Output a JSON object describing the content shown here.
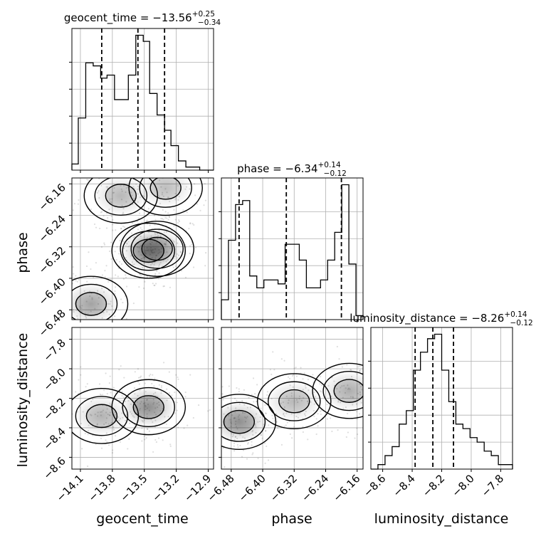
{
  "chart_data": {
    "type": "corner",
    "parameters": [
      "geocent_time",
      "phase",
      "luminosity_distance"
    ],
    "grid": true,
    "quantile_lines": "dashed",
    "axes": {
      "geocent_time": {
        "label": "geocent_time",
        "range": [
          -14.18,
          -12.85
        ],
        "ticks": [
          -14.1,
          -13.8,
          -13.5,
          -13.2,
          -12.9
        ],
        "tick_labels": [
          "−14.1",
          "−13.8",
          "−13.5",
          "−13.2",
          "−12.9"
        ]
      },
      "phase": {
        "label": "phase",
        "range": [
          -6.505,
          -6.145
        ],
        "ticks": [
          -6.48,
          -6.4,
          -6.32,
          -6.24,
          -6.16
        ],
        "tick_labels": [
          "−6.48",
          "−6.40",
          "−6.32",
          "−6.24",
          "−6.16"
        ]
      },
      "luminosity_distance": {
        "label": "luminosity_distance",
        "range": [
          -8.68,
          -7.72
        ],
        "ticks": [
          -8.6,
          -8.4,
          -8.2,
          -8.0,
          -7.8
        ],
        "tick_labels": [
          "−8.6",
          "−8.4",
          "−8.2",
          "−8.0",
          "−7.8"
        ]
      }
    },
    "marginals": [
      {
        "parameter": "geocent_time",
        "title": {
          "prefix": "geocent_time = ",
          "median": "−13.56",
          "plus": "+0.25",
          "minus": "−0.34"
        },
        "quantiles": [
          -13.9,
          -13.56,
          -13.31
        ],
        "bin_edges": [
          -14.18,
          -14.12,
          -14.05,
          -13.98,
          -13.91,
          -13.85,
          -13.78,
          -13.71,
          -13.65,
          -13.58,
          -13.51,
          -13.45,
          -13.38,
          -13.31,
          -13.25,
          -13.18,
          -13.11,
          -13.05,
          -12.98,
          -12.91,
          -12.85
        ],
        "counts": [
          2,
          17,
          35,
          34,
          30,
          31,
          23,
          23,
          31,
          44,
          42,
          25,
          18,
          13,
          8,
          3,
          1,
          1,
          0,
          0
        ]
      },
      {
        "parameter": "phase",
        "title": {
          "prefix": "phase = ",
          "median": "−6.34",
          "plus": "+0.14",
          "minus": "−0.12"
        },
        "quantiles": [
          -6.46,
          -6.34,
          -6.2
        ],
        "bin_edges": [
          -6.505,
          -6.487,
          -6.469,
          -6.451,
          -6.433,
          -6.415,
          -6.397,
          -6.379,
          -6.361,
          -6.343,
          -6.325,
          -6.307,
          -6.289,
          -6.271,
          -6.253,
          -6.235,
          -6.217,
          -6.199,
          -6.181,
          -6.163,
          -6.145
        ],
        "counts": [
          5,
          20,
          29,
          30,
          11,
          8,
          10,
          10,
          9,
          19,
          19,
          15,
          8,
          8,
          10,
          15,
          22,
          34,
          14,
          1
        ]
      },
      {
        "parameter": "luminosity_distance",
        "title": {
          "prefix": "luminosity_distance = ",
          "median": "−8.26",
          "plus": "+0.14",
          "minus": "−0.12"
        },
        "quantiles": [
          -8.38,
          -8.26,
          -8.12
        ],
        "bin_edges": [
          -8.68,
          -8.632,
          -8.584,
          -8.536,
          -8.488,
          -8.44,
          -8.392,
          -8.344,
          -8.296,
          -8.248,
          -8.2,
          -8.152,
          -8.104,
          -8.056,
          -8.008,
          -7.96,
          -7.912,
          -7.864,
          -7.816,
          -7.768,
          -7.72
        ],
        "counts": [
          0,
          1,
          3,
          5,
          10,
          13,
          22,
          26,
          29,
          30,
          22,
          15,
          10,
          9,
          7,
          6,
          4,
          3,
          1,
          1
        ]
      }
    ],
    "joint": [
      {
        "x": "geocent_time",
        "y": "phase",
        "modes": [
          {
            "center": [
              -13.46,
              -6.33
            ],
            "peak": 1.0
          },
          {
            "center": [
              -13.38,
              -6.325
            ],
            "peak": 0.75
          },
          {
            "center": [
              -14.0,
              -6.465
            ],
            "peak": 0.8
          },
          {
            "center": [
              -13.72,
              -6.19
            ],
            "peak": 0.6
          },
          {
            "center": [
              -13.3,
              -6.17
            ],
            "peak": 0.55
          }
        ]
      },
      {
        "x": "geocent_time",
        "y": "luminosity_distance",
        "modes": [
          {
            "center": [
              -13.46,
              -8.26
            ],
            "peak": 1.0
          },
          {
            "center": [
              -13.9,
              -8.32
            ],
            "peak": 0.65
          }
        ]
      },
      {
        "x": "phase",
        "y": "luminosity_distance",
        "modes": [
          {
            "center": [
              -6.46,
              -8.36
            ],
            "peak": 1.0
          },
          {
            "center": [
              -6.32,
              -8.22
            ],
            "peak": 0.6
          },
          {
            "center": [
              -6.18,
              -8.15
            ],
            "peak": 0.7
          }
        ]
      }
    ]
  }
}
